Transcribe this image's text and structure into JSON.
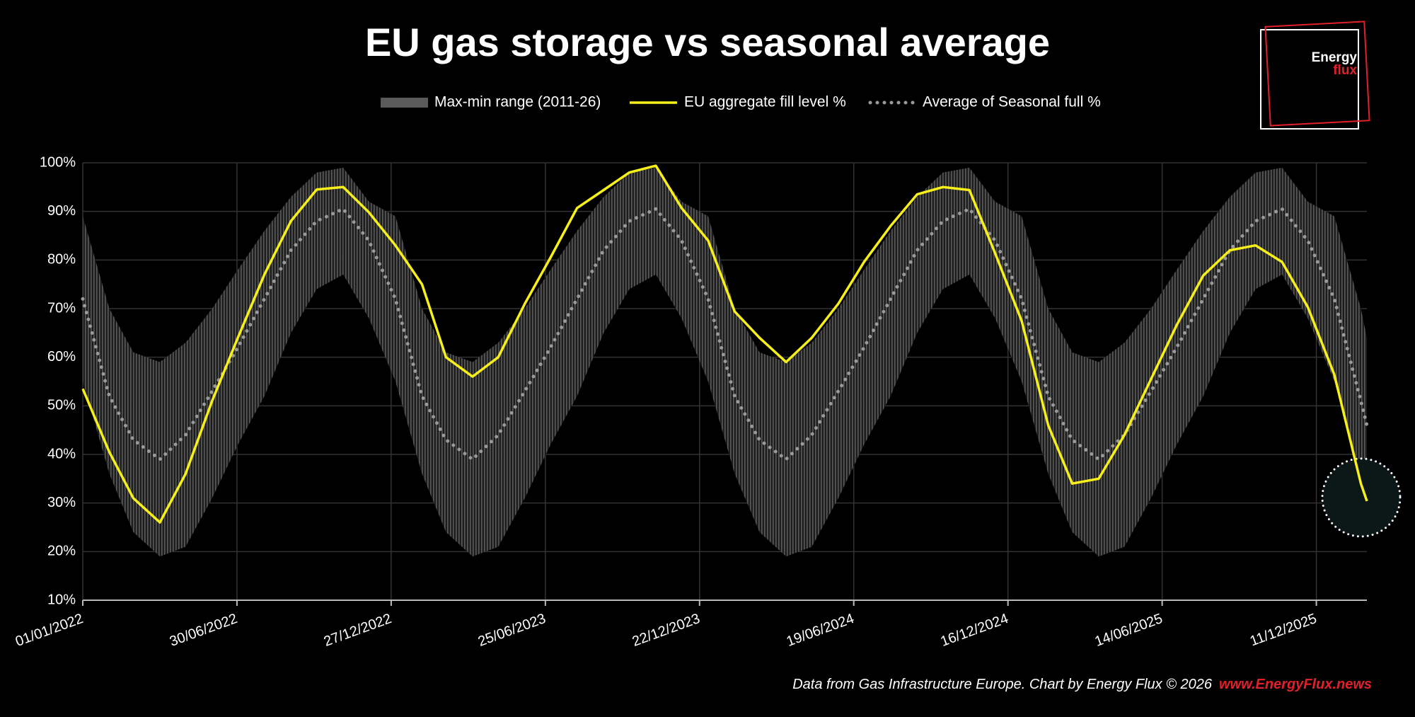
{
  "chart_data": {
    "type": "line",
    "title": "EU gas storage vs seasonal average",
    "x": [
      "2022-01-01",
      "2022-02-01",
      "2022-03-01",
      "2022-04-01",
      "2022-05-01",
      "2022-06-01",
      "2022-07-01",
      "2022-08-01",
      "2022-09-01",
      "2022-10-01",
      "2022-11-01",
      "2022-12-01",
      "2023-01-01",
      "2023-02-01",
      "2023-03-01",
      "2023-04-01",
      "2023-05-01",
      "2023-06-01",
      "2023-07-01",
      "2023-08-01",
      "2023-09-01",
      "2023-10-01",
      "2023-11-01",
      "2023-12-01",
      "2024-01-01",
      "2024-02-01",
      "2024-03-01",
      "2024-04-01",
      "2024-05-01",
      "2024-06-01",
      "2024-07-01",
      "2024-08-01",
      "2024-09-01",
      "2024-10-01",
      "2024-11-01",
      "2024-12-01",
      "2025-01-01",
      "2025-02-01",
      "2025-03-01",
      "2025-04-01",
      "2025-05-01",
      "2025-06-01",
      "2025-07-01",
      "2025-08-01",
      "2025-09-01",
      "2025-10-01",
      "2025-11-01",
      "2025-12-01",
      "2026-01-01",
      "2026-02-01",
      "2026-02-08"
    ],
    "band": {
      "name": "Max-min range (2011-26)",
      "color": "#5a5a5a",
      "max": [
        89,
        70,
        61,
        59,
        63,
        70,
        78,
        86,
        93,
        98,
        99,
        92,
        89,
        70,
        61,
        59,
        63,
        70,
        78,
        86,
        93,
        98,
        99,
        92,
        89,
        70,
        61,
        59,
        63,
        70,
        78,
        86,
        93,
        98,
        99,
        92,
        89,
        70,
        61,
        59,
        63,
        70,
        78,
        86,
        93,
        98,
        99,
        92,
        89,
        70,
        64
      ],
      "min": [
        55,
        36,
        24,
        19,
        21,
        31,
        42,
        52,
        65,
        74,
        77,
        68,
        55,
        36,
        24,
        19,
        21,
        31,
        42,
        52,
        65,
        74,
        77,
        68,
        55,
        36,
        24,
        19,
        21,
        31,
        42,
        52,
        65,
        74,
        77,
        68,
        55,
        36,
        24,
        19,
        21,
        31,
        42,
        52,
        65,
        74,
        77,
        68,
        55,
        36,
        31
      ]
    },
    "series": [
      {
        "name": "EU aggregate fill level %",
        "color": "#f7ef1a",
        "style": "solid",
        "values": [
          53.5,
          40.5,
          31,
          26,
          36,
          51,
          64,
          77,
          88,
          94.5,
          95,
          89.8,
          83,
          75,
          60,
          56,
          60,
          71,
          80.5,
          90.7,
          94.4,
          98,
          99.4,
          90.7,
          84,
          69.4,
          64,
          59,
          64,
          71,
          79.6,
          87,
          93.5,
          95,
          94.4,
          81.4,
          67.5,
          46,
          34,
          35,
          44,
          55.5,
          66.6,
          76.8,
          82,
          83,
          79.6,
          70.3,
          56.4,
          34,
          30.4
        ]
      },
      {
        "name": "Average of Seasonal full %",
        "color": "#9a9a9a",
        "style": "dotted",
        "values": [
          72,
          52,
          43,
          39,
          44,
          53,
          62,
          72,
          82,
          88,
          90.5,
          84,
          72,
          52,
          43,
          39,
          44,
          53,
          62,
          72,
          82,
          88,
          90.5,
          84,
          72,
          52,
          43,
          39,
          44,
          53,
          62,
          72,
          82,
          88,
          90.5,
          84,
          72,
          52,
          43,
          39,
          44,
          53,
          62,
          72,
          82,
          88,
          90.5,
          84,
          72,
          51,
          46
        ]
      }
    ],
    "xlim": [
      "2022-01-01",
      "2026-02-08"
    ],
    "xticks": [
      {
        "value": "2022-01-01",
        "label": "01/01/2022"
      },
      {
        "value": "2022-06-30",
        "label": "30/06/2022"
      },
      {
        "value": "2022-12-27",
        "label": "27/12/2022"
      },
      {
        "value": "2023-06-25",
        "label": "25/06/2023"
      },
      {
        "value": "2023-12-22",
        "label": "22/12/2023"
      },
      {
        "value": "2024-06-19",
        "label": "19/06/2024"
      },
      {
        "value": "2024-12-16",
        "label": "16/12/2024"
      },
      {
        "value": "2025-06-14",
        "label": "14/06/2025"
      },
      {
        "value": "2025-12-11",
        "label": "11/12/2025"
      }
    ],
    "ylim": [
      10,
      100
    ],
    "yticks": [
      {
        "value": 10,
        "label": "10%"
      },
      {
        "value": 20,
        "label": "20%"
      },
      {
        "value": 30,
        "label": "30%"
      },
      {
        "value": 40,
        "label": "40%"
      },
      {
        "value": 50,
        "label": "50%"
      },
      {
        "value": 60,
        "label": "60%"
      },
      {
        "value": 70,
        "label": "70%"
      },
      {
        "value": 80,
        "label": "80%"
      },
      {
        "value": 90,
        "label": "90%"
      },
      {
        "value": 100,
        "label": "100%"
      }
    ],
    "grid": true,
    "legend": "top"
  },
  "logo": {
    "line1": "Energy",
    "line2": "flux"
  },
  "footer": {
    "source": "Data from Gas Infrastructure Europe. Chart by Energy Flux © 2026",
    "url": "www.EnergyFlux.news"
  }
}
